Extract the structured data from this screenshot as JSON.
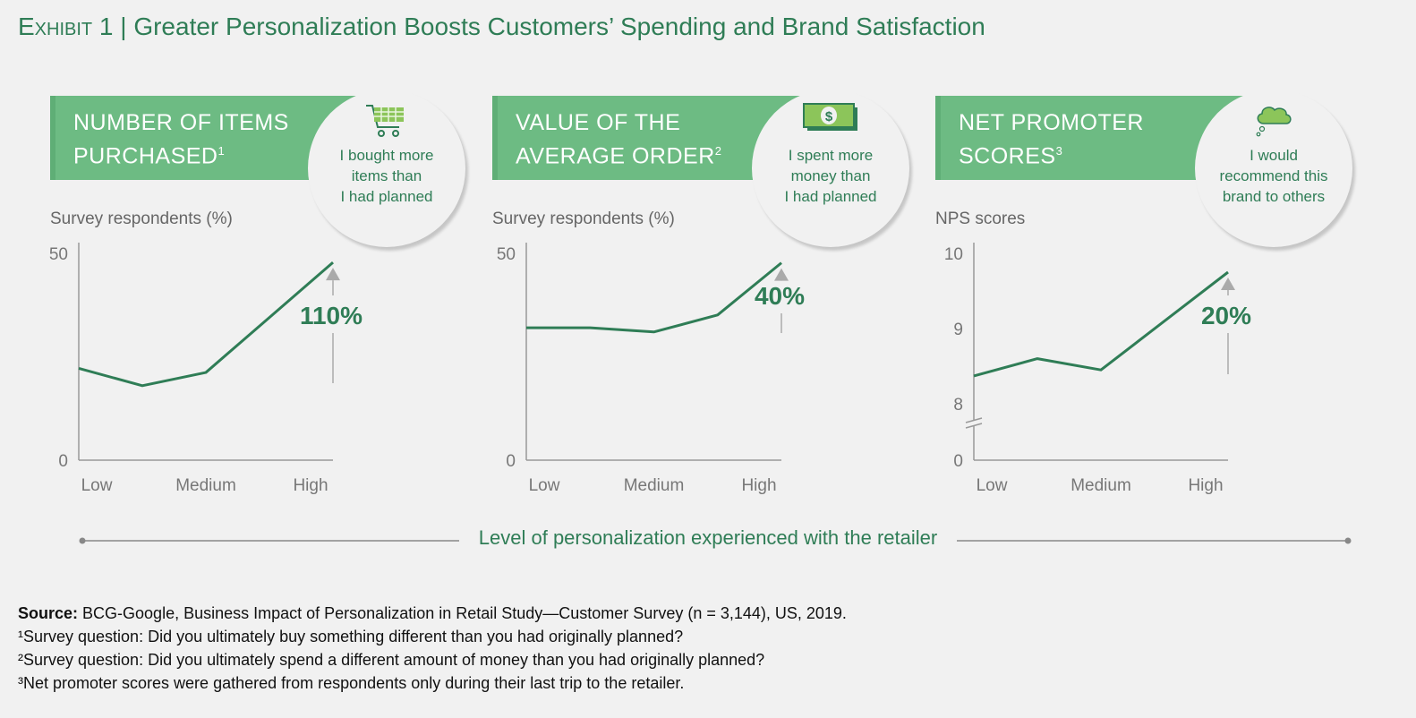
{
  "title": {
    "exhibit": "Exhibit 1",
    "separator": "|",
    "text": "Greater Personalization Boosts Customers’ Spending and Brand Satisfaction"
  },
  "colors": {
    "band": "#6dbb83",
    "line": "#2f7d56",
    "accent_text": "#2f7d56",
    "axis": "#999999",
    "arrow": "#aaaaaa"
  },
  "x_axis_title": "Level of personalization experienced with the retailer",
  "chart_data": [
    {
      "type": "line",
      "title": "NUMBER OF ITEMS PURCHASED",
      "title_footnote": "1",
      "bubble_text": [
        "I bought more",
        "items than",
        "I had planned"
      ],
      "icon": "shopping-cart-icon",
      "ylabel": "Survey respondents (%)",
      "ylim": [
        0,
        50
      ],
      "yticks": [
        "0",
        "50"
      ],
      "xticks": [
        "Low",
        "Medium",
        "High"
      ],
      "x": [
        0,
        1,
        2,
        3,
        4
      ],
      "values": [
        22.2,
        18.0,
        21.2,
        34.5,
        47.8
      ],
      "annotation": "110%",
      "grid": false
    },
    {
      "type": "line",
      "title": "VALUE OF THE AVERAGE ORDER",
      "title_footnote": "2",
      "bubble_text": [
        "I spent more",
        "money than",
        "I had planned"
      ],
      "icon": "dollar-bill-icon",
      "ylabel": "Survey respondents (%)",
      "ylim": [
        0,
        50
      ],
      "yticks": [
        "0",
        "50"
      ],
      "xticks": [
        "Low",
        "Medium",
        "High"
      ],
      "x": [
        0,
        1,
        2,
        3,
        4
      ],
      "values": [
        32.0,
        32.0,
        31.0,
        35.1,
        47.7
      ],
      "annotation": "40%",
      "grid": false
    },
    {
      "type": "line",
      "title": "NET PROMOTER SCORES",
      "title_footnote": "3",
      "bubble_text": [
        "I would",
        "recommend this",
        "brand to others"
      ],
      "icon": "thought-bubble-icon",
      "ylabel": "NPS scores",
      "ylim": [
        0,
        10
      ],
      "axis_break": [
        0,
        8
      ],
      "yticks": [
        "0",
        "8",
        "9",
        "10"
      ],
      "xticks": [
        "Low",
        "Medium",
        "High"
      ],
      "x": [
        0,
        1,
        2,
        3,
        4
      ],
      "values": [
        8.37,
        8.6,
        8.45,
        9.1,
        9.75
      ],
      "annotation": "20%",
      "grid": false
    }
  ],
  "footer": {
    "source_label": "Source:",
    "source_text": " BCG-Google, Business Impact of Personalization in Retail Study—Customer Survey (n = 3,144), US, 2019.",
    "notes": [
      "¹Survey question: Did you ultimately buy something different than you had originally planned?",
      "²Survey question: Did you ultimately spend a different amount of money than you had originally planned?",
      "³Net promoter scores were gathered from respondents only during their last trip to the retailer."
    ]
  }
}
